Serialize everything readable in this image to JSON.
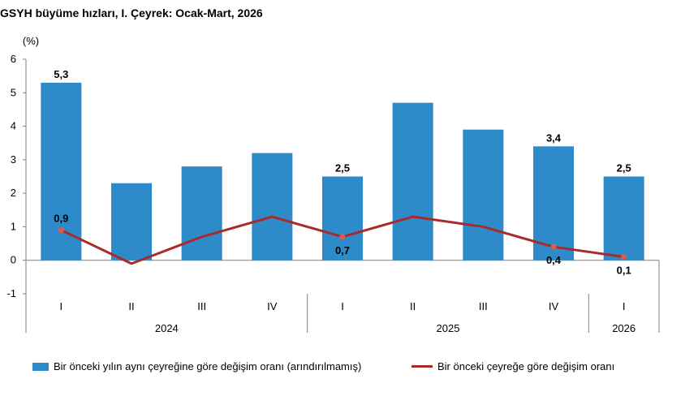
{
  "chart_data": {
    "type": "bar",
    "title": "GSYH büyüme hızları, I. Çeyrek: Ocak-Mart, 2026",
    "ylabel": "(%)",
    "ylim": [
      -1,
      6
    ],
    "yticks": [
      "6",
      "5",
      "4",
      "3",
      "2",
      "1",
      "0",
      "-1"
    ],
    "yticks_values": [
      6,
      5,
      4,
      3,
      2,
      1,
      0,
      -1
    ],
    "categories": [
      "I",
      "II",
      "III",
      "IV",
      "I",
      "II",
      "III",
      "IV",
      "I"
    ],
    "year_groups": [
      {
        "label": "2024",
        "start": 0,
        "end": 3
      },
      {
        "label": "2025",
        "start": 4,
        "end": 7
      },
      {
        "label": "2026",
        "start": 8,
        "end": 8
      }
    ],
    "series": [
      {
        "name": "Bir önceki yılın aynı çeyreğine göre değişim oranı (arındırılmamış)",
        "type": "bar",
        "color": "#2E8BC9",
        "values": [
          5.3,
          2.3,
          2.8,
          3.2,
          2.5,
          4.7,
          3.9,
          3.4,
          2.5
        ],
        "labels": [
          "5,3",
          "",
          "",
          "",
          "2,5",
          "",
          "",
          "3,4",
          "2,5"
        ]
      },
      {
        "name": "Bir önceki çeyreğe göre değişim oranı",
        "type": "line",
        "color": "#A82A2A",
        "values": [
          0.9,
          -0.1,
          0.7,
          1.3,
          0.7,
          1.3,
          1.0,
          0.4,
          0.1
        ],
        "labels": [
          "0,9",
          "",
          "",
          "",
          "0,7",
          "",
          "",
          "0,4",
          "0,1"
        ]
      }
    ]
  }
}
